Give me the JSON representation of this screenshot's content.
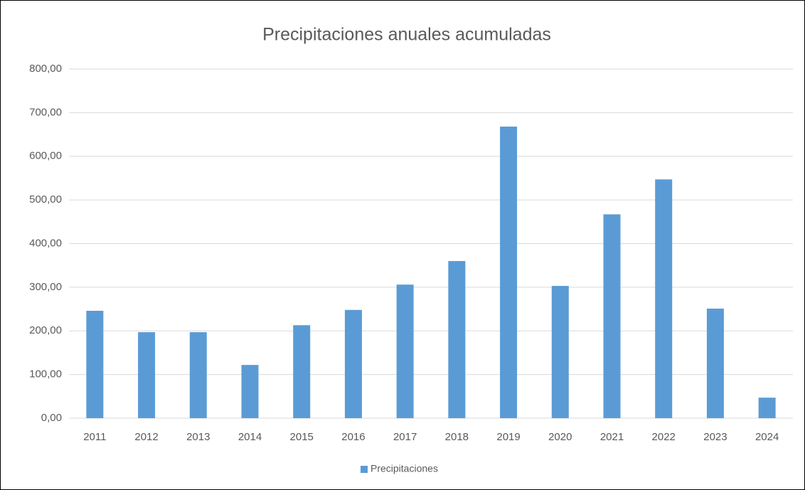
{
  "chart_data": {
    "type": "bar",
    "title": "Precipitaciones anuales acumuladas",
    "categories": [
      "2011",
      "2012",
      "2013",
      "2014",
      "2015",
      "2016",
      "2017",
      "2018",
      "2019",
      "2020",
      "2021",
      "2022",
      "2023",
      "2024"
    ],
    "series": [
      {
        "name": "Precipitaciones",
        "color": "#5b9bd5",
        "values": [
          246,
          197,
          197,
          122,
          213,
          248,
          306,
          360,
          668,
          303,
          467,
          547,
          251,
          47
        ]
      }
    ],
    "ylim": [
      0,
      800
    ],
    "yticks": [
      {
        "value": 0,
        "label": "0,00"
      },
      {
        "value": 100,
        "label": "100,00"
      },
      {
        "value": 200,
        "label": "200,00"
      },
      {
        "value": 300,
        "label": "300,00"
      },
      {
        "value": 400,
        "label": "400,00"
      },
      {
        "value": 500,
        "label": "500,00"
      },
      {
        "value": 600,
        "label": "600,00"
      },
      {
        "value": 700,
        "label": "700,00"
      },
      {
        "value": 800,
        "label": "800,00"
      }
    ],
    "grid": true,
    "legend": "bottom"
  }
}
